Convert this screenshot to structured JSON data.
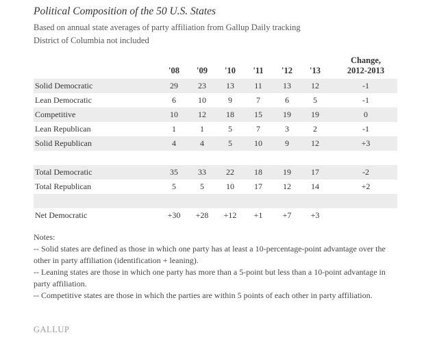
{
  "title": "Political Composition of the 50 U.S. States",
  "subtitle_1": "Based on annual state averages of party affiliation from Gallup Daily tracking",
  "subtitle_2": "District of Columbia not included",
  "chart_data": {
    "type": "table",
    "columns": [
      "'08",
      "'09",
      "'10",
      "'11",
      "'12",
      "'13"
    ],
    "change_header_1": "Change,",
    "change_header_2": "2012-2013",
    "rows": [
      {
        "label": "Solid Democratic",
        "values": [
          "29",
          "23",
          "13",
          "11",
          "13",
          "12"
        ],
        "change": "-1",
        "shade": true
      },
      {
        "label": "Lean Democratic",
        "values": [
          "6",
          "10",
          "9",
          "7",
          "6",
          "5"
        ],
        "change": "-1",
        "shade": false
      },
      {
        "label": "Competitive",
        "values": [
          "10",
          "12",
          "18",
          "15",
          "19",
          "19"
        ],
        "change": "0",
        "shade": true
      },
      {
        "label": "Lean Republican",
        "values": [
          "1",
          "1",
          "5",
          "7",
          "3",
          "2"
        ],
        "change": "-1",
        "shade": false
      },
      {
        "label": "Solid Republican",
        "values": [
          "4",
          "4",
          "5",
          "10",
          "9",
          "12"
        ],
        "change": "+3",
        "shade": true
      },
      {
        "label": "",
        "values": [
          "",
          "",
          "",
          "",
          "",
          ""
        ],
        "change": "",
        "shade": false
      },
      {
        "label": "Total Democratic",
        "values": [
          "35",
          "33",
          "22",
          "18",
          "19",
          "17"
        ],
        "change": "-2",
        "shade": true
      },
      {
        "label": "Total Republican",
        "values": [
          "5",
          "5",
          "10",
          "17",
          "12",
          "14"
        ],
        "change": "+2",
        "shade": false
      },
      {
        "label": "",
        "values": [
          "",
          "",
          "",
          "",
          "",
          ""
        ],
        "change": "",
        "shade": true
      },
      {
        "label": "Net Democratic",
        "values": [
          "+30",
          "+28",
          "+12",
          "+1",
          "+7",
          "+3"
        ],
        "change": "",
        "shade": false
      }
    ]
  },
  "notes": {
    "heading": "Notes:",
    "lines": [
      "-- Solid states are defined as those in which one party has at least a 10-percentage-point advantage over the other in party affiliation (identification + leaning).",
      "-- Leaning states are those in which one party has more than a 5-point but less than a 10-point advantage in party affiliation.",
      "-- Competitive states are those in which the parties are within 5 points of each other in party affiliation."
    ]
  },
  "logo_text": "GALLUP",
  "colors": {
    "row_shade": "#ececec",
    "text": "#333333",
    "logo": "#9a9a9a"
  }
}
